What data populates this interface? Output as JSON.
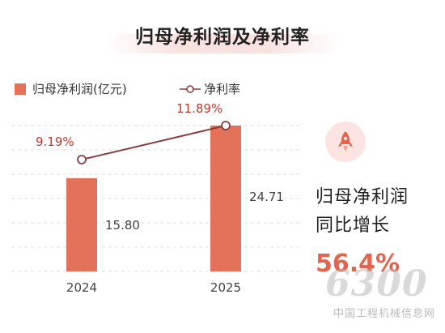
{
  "title": "归母净利润及净利率",
  "colors": {
    "bar": "#e2735a",
    "line": "#8a3f3f",
    "accent": "#e2654f"
  },
  "chart_data": {
    "type": "bar+line",
    "categories": [
      "2024",
      "2025"
    ],
    "series": [
      {
        "name": "归母净利润(亿元)",
        "type": "bar",
        "values": [
          15.8,
          24.71
        ],
        "labels": [
          "15.80",
          "24.71"
        ]
      },
      {
        "name": "净利率",
        "type": "line",
        "values": [
          9.19,
          11.89
        ],
        "labels": [
          "9.19%",
          "11.89%"
        ]
      }
    ],
    "legend": "top-left",
    "grid": true
  },
  "side": {
    "icon": "rocket-icon",
    "line1": "归母净利润",
    "line2": "同比增长",
    "growth": "56.4%"
  },
  "watermark": {
    "number": "6300",
    "text": "中国工程机械信息网"
  }
}
